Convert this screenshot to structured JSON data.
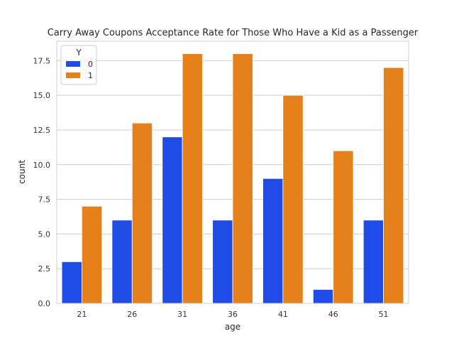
{
  "chart_data": {
    "type": "bar",
    "title": "Carry Away Coupons Acceptance Rate for Those Who Have a Kid as a Passenger",
    "xlabel": "age",
    "ylabel": "count",
    "categories": [
      "21",
      "26",
      "31",
      "36",
      "41",
      "46",
      "51"
    ],
    "series": [
      {
        "name": "0",
        "color": "#1f4ce6",
        "values": [
          3,
          6,
          12,
          6,
          9,
          1,
          6
        ]
      },
      {
        "name": "1",
        "color": "#e6801a",
        "values": [
          7,
          13,
          18,
          18,
          15,
          11,
          17
        ]
      }
    ],
    "legend": {
      "title": "Y",
      "position": "top-left"
    },
    "ylim": [
      0,
      18.9
    ],
    "yticks": [
      0.0,
      2.5,
      5.0,
      7.5,
      10.0,
      12.5,
      15.0,
      17.5
    ],
    "ytick_labels": [
      "0.0",
      "2.5",
      "5.0",
      "7.5",
      "10.0",
      "12.5",
      "15.0",
      "17.5"
    ],
    "grid": true
  }
}
